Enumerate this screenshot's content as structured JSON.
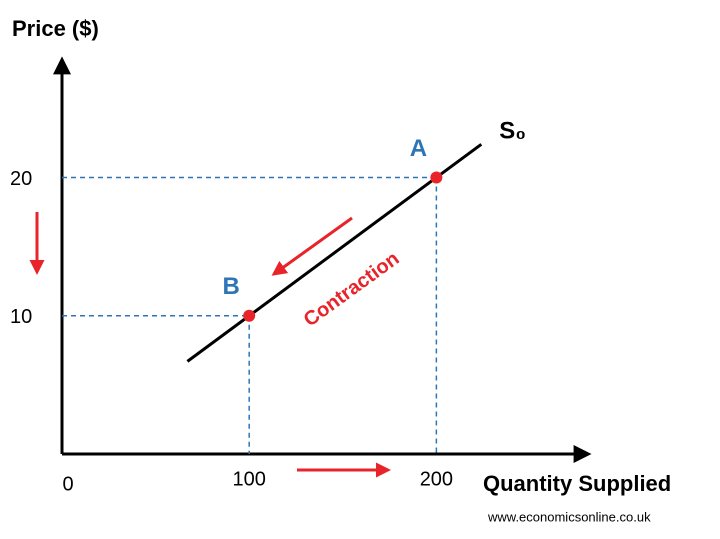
{
  "chart_data": {
    "type": "line",
    "y_label": "Price ($)",
    "x_label": "Quantity Supplied",
    "xlim": [
      0,
      281
    ],
    "ylim": [
      0,
      28.5
    ],
    "xticks": [
      0,
      100,
      200
    ],
    "yticks": [
      10,
      20
    ],
    "series": [
      {
        "name": "S₀",
        "color": "#000000",
        "x": [
          67,
          224
        ],
        "y": [
          6.7,
          22.4
        ]
      }
    ],
    "points": [
      {
        "label": "A",
        "x": 200,
        "y": 20,
        "color": "#e8232a",
        "label_color": "#2e75b6"
      },
      {
        "label": "B",
        "x": 100,
        "y": 10,
        "color": "#e8232a",
        "label_color": "#2e75b6"
      }
    ],
    "annotation": "Contraction",
    "annotation_color": "#e8232a",
    "source": "www.economicsonline.co.uk"
  }
}
